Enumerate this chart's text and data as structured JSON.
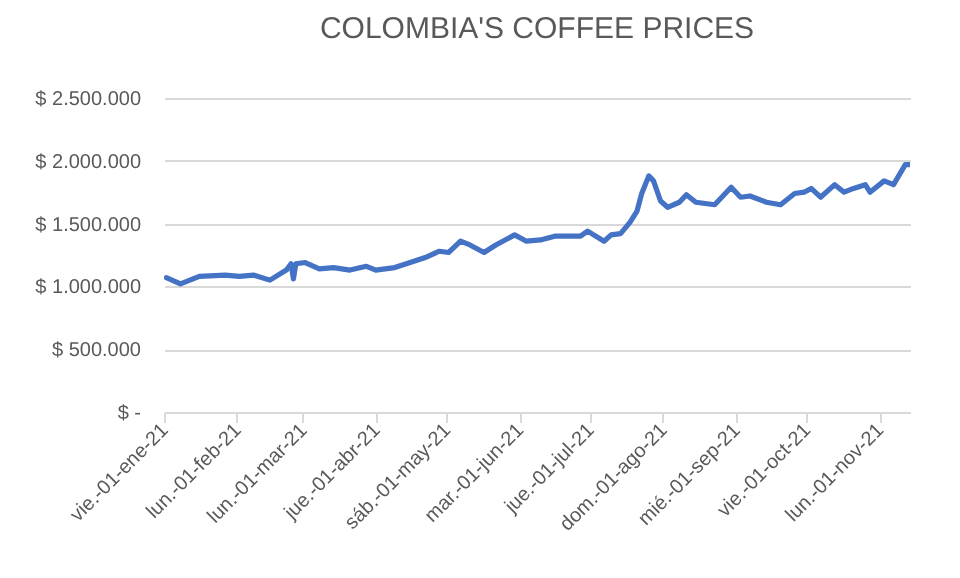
{
  "chart_data": {
    "type": "line",
    "title": "COLOMBIA'S COFFEE PRICES",
    "x": [
      "2021-01-02",
      "2021-01-08",
      "2021-01-16",
      "2021-01-27",
      "2021-02-02",
      "2021-02-08",
      "2021-02-15",
      "2021-02-22",
      "2021-02-24",
      "2021-02-25",
      "2021-02-26",
      "2021-03-02",
      "2021-03-08",
      "2021-03-14",
      "2021-03-21",
      "2021-03-28",
      "2021-04-01",
      "2021-04-09",
      "2021-04-14",
      "2021-04-22",
      "2021-04-28",
      "2021-05-02",
      "2021-05-07",
      "2021-05-11",
      "2021-05-17",
      "2021-05-22",
      "2021-05-30",
      "2021-06-04",
      "2021-06-10",
      "2021-06-16",
      "2021-06-27",
      "2021-06-30",
      "2021-07-07",
      "2021-07-10",
      "2021-07-14",
      "2021-07-18",
      "2021-07-21",
      "2021-07-23",
      "2021-07-26",
      "2021-07-28",
      "2021-07-31",
      "2021-08-03",
      "2021-08-08",
      "2021-08-11",
      "2021-08-15",
      "2021-08-23",
      "2021-08-30",
      "2021-09-03",
      "2021-09-07",
      "2021-09-14",
      "2021-09-20",
      "2021-09-26",
      "2021-09-30",
      "2021-10-03",
      "2021-10-07",
      "2021-10-13",
      "2021-10-17",
      "2021-10-21",
      "2021-10-26",
      "2021-10-28",
      "2021-11-03",
      "2021-11-07",
      "2021-11-12",
      "2021-11-14"
    ],
    "series": [
      {
        "color": "#4472c4",
        "values": [
          1070000,
          1020000,
          1080000,
          1090000,
          1080000,
          1090000,
          1050000,
          1130000,
          1180000,
          1060000,
          1180000,
          1190000,
          1140000,
          1150000,
          1130000,
          1160000,
          1130000,
          1150000,
          1180000,
          1230000,
          1280000,
          1270000,
          1360000,
          1330000,
          1270000,
          1330000,
          1410000,
          1360000,
          1370000,
          1400000,
          1400000,
          1440000,
          1360000,
          1410000,
          1420000,
          1510000,
          1600000,
          1740000,
          1880000,
          1840000,
          1680000,
          1630000,
          1670000,
          1730000,
          1670000,
          1650000,
          1790000,
          1710000,
          1720000,
          1670000,
          1650000,
          1740000,
          1750000,
          1780000,
          1710000,
          1810000,
          1750000,
          1780000,
          1810000,
          1750000,
          1840000,
          1810000,
          1970000,
          1970000
        ]
      }
    ],
    "xlim": [
      "2021-01-01",
      "2021-11-14"
    ],
    "xticks": [
      {
        "value": "2021-01-01",
        "label": "vie.-01-ene-21"
      },
      {
        "value": "2021-02-01",
        "label": "lun.-01-feb-21"
      },
      {
        "value": "2021-03-01",
        "label": "lun.-01-mar-21"
      },
      {
        "value": "2021-04-01",
        "label": "jue.-01-abr-21"
      },
      {
        "value": "2021-05-01",
        "label": "sáb.-01-may-21"
      },
      {
        "value": "2021-06-01",
        "label": "mar.-01-jun-21"
      },
      {
        "value": "2021-07-01",
        "label": "jue.-01-jul-21"
      },
      {
        "value": "2021-08-01",
        "label": "dom.-01-ago-21"
      },
      {
        "value": "2021-09-01",
        "label": "mié.-01-sep-21"
      },
      {
        "value": "2021-10-01",
        "label": "vie.-01-oct-21"
      },
      {
        "value": "2021-11-01",
        "label": "lun.-01-nov-21"
      }
    ],
    "ylim": [
      0,
      2500000
    ],
    "yticks": [
      {
        "value": 0,
        "label": "$ -"
      },
      {
        "value": 500000,
        "label": "$ 500.000"
      },
      {
        "value": 1000000,
        "label": "$ 1.000.000"
      },
      {
        "value": 1500000,
        "label": "$ 1.500.000"
      },
      {
        "value": 2000000,
        "label": "$ 2.000.000"
      },
      {
        "value": 2500000,
        "label": "$ 2.500.000"
      }
    ],
    "grid": "y",
    "marker": "none",
    "line_style": "solid"
  }
}
